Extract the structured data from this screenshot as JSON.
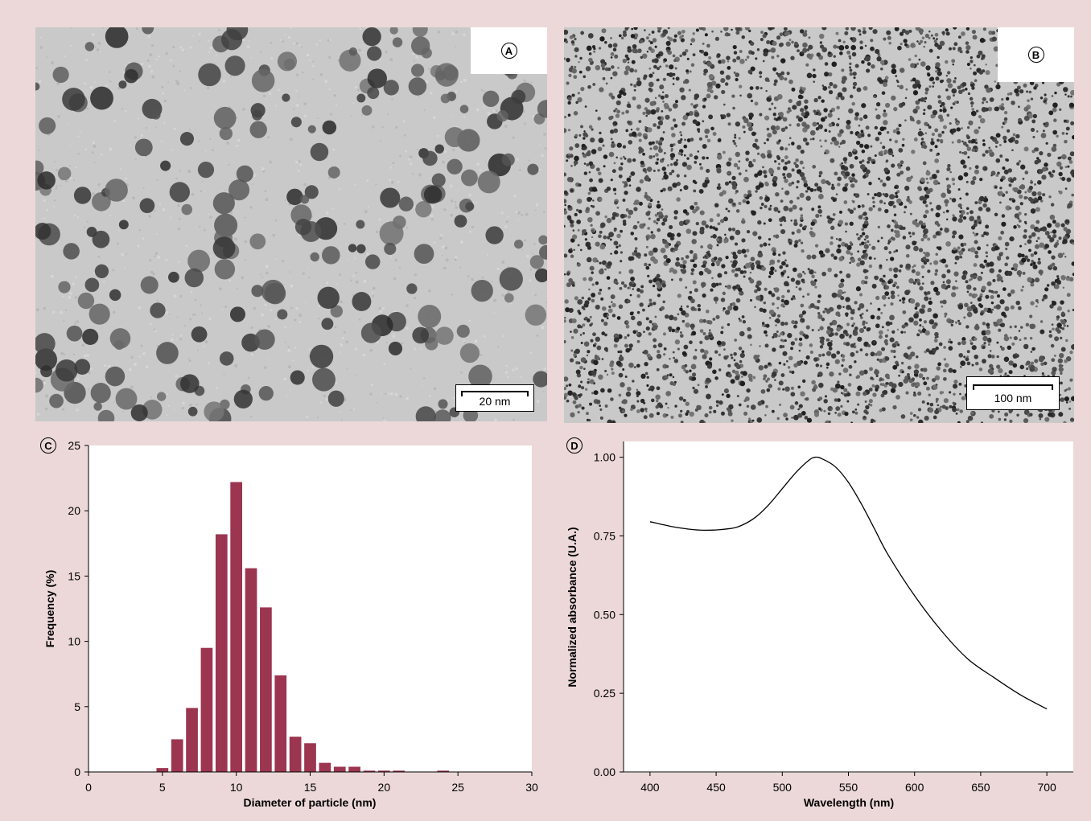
{
  "panels": {
    "a": {
      "label": "A",
      "scale_label": "20 nm"
    },
    "b": {
      "label": "B",
      "scale_label": "100 nm"
    },
    "c": {
      "label": "C"
    },
    "d": {
      "label": "D"
    }
  },
  "chart_data": [
    {
      "type": "bar",
      "panel": "C",
      "xlabel": "Diameter of particle (nm)",
      "ylabel": "Frequency (%)",
      "xlim": [
        0,
        30
      ],
      "ylim": [
        0,
        25
      ],
      "xticks": [
        0,
        5,
        10,
        15,
        20,
        25,
        30
      ],
      "yticks": [
        0,
        5,
        10,
        15,
        20,
        25
      ],
      "bar_color": "#9b3550",
      "x": [
        5,
        6,
        7,
        8,
        9,
        10,
        11,
        12,
        13,
        14,
        15,
        16,
        17,
        18,
        19,
        20,
        21,
        24
      ],
      "values": [
        0.3,
        2.5,
        4.9,
        9.5,
        18.2,
        22.2,
        15.6,
        12.6,
        7.4,
        2.7,
        2.2,
        0.7,
        0.4,
        0.4,
        0.1,
        0.1,
        0.1,
        0.1
      ]
    },
    {
      "type": "line",
      "panel": "D",
      "xlabel": "Wavelength (nm)",
      "ylabel": "Normalized absorbance (U.A.)",
      "xlim": [
        380,
        720
      ],
      "ylim": [
        0,
        1.05
      ],
      "xticks": [
        400,
        450,
        500,
        550,
        600,
        650,
        700
      ],
      "yticks": [
        0.0,
        0.25,
        0.5,
        0.75,
        1.0
      ],
      "ytick_labels": [
        "0.00",
        "0.25",
        "0.50",
        "0.75",
        "1.00"
      ],
      "line_color": "#000000",
      "x": [
        400,
        420,
        440,
        460,
        470,
        480,
        490,
        500,
        510,
        520,
        525,
        530,
        540,
        550,
        560,
        570,
        580,
        600,
        620,
        640,
        660,
        680,
        700
      ],
      "y": [
        0.795,
        0.777,
        0.768,
        0.773,
        0.785,
        0.81,
        0.85,
        0.9,
        0.95,
        0.99,
        1.0,
        0.995,
        0.97,
        0.92,
        0.85,
        0.77,
        0.69,
        0.56,
        0.45,
        0.36,
        0.3,
        0.245,
        0.2
      ]
    }
  ]
}
